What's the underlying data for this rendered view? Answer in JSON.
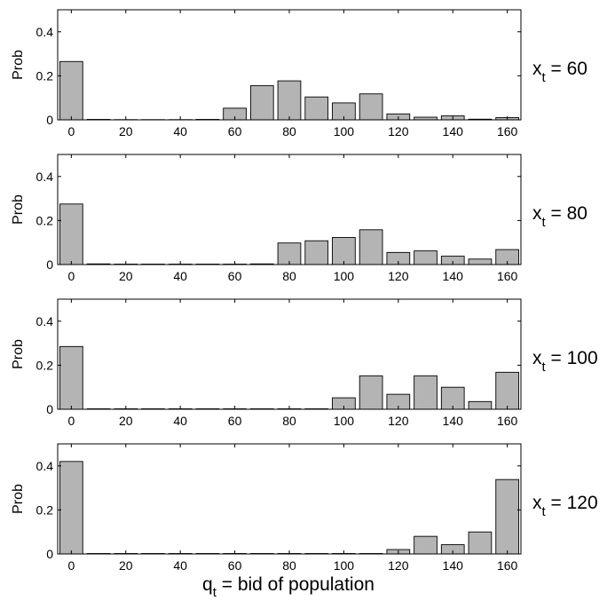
{
  "chart_data": [
    {
      "type": "bar",
      "ylabel": "Prob",
      "side_label": {
        "main": "x",
        "sub": "t",
        "rest": " = 60"
      },
      "categories": [
        0,
        10,
        20,
        30,
        40,
        50,
        60,
        70,
        80,
        90,
        100,
        110,
        120,
        130,
        140,
        150,
        160
      ],
      "values": [
        0.265,
        0.002,
        0.001,
        0.001,
        0.001,
        0.002,
        0.053,
        0.155,
        0.177,
        0.104,
        0.077,
        0.118,
        0.027,
        0.012,
        0.018,
        0.003,
        0.01
      ],
      "xticks": [
        0,
        20,
        40,
        60,
        80,
        100,
        120,
        140,
        160
      ],
      "yticks": [
        0,
        0.2,
        0.4
      ],
      "ytick_labels": [
        "0",
        "0.2",
        "0.4"
      ],
      "xlim": [
        -5,
        165
      ],
      "ylim": [
        0,
        0.5
      ]
    },
    {
      "type": "bar",
      "ylabel": "Prob",
      "side_label": {
        "main": "x",
        "sub": "t",
        "rest": " = 80"
      },
      "categories": [
        0,
        10,
        20,
        30,
        40,
        50,
        60,
        70,
        80,
        90,
        100,
        110,
        120,
        130,
        140,
        150,
        160
      ],
      "values": [
        0.275,
        0.003,
        0.002,
        0.002,
        0.002,
        0.002,
        0.002,
        0.003,
        0.098,
        0.108,
        0.123,
        0.158,
        0.055,
        0.062,
        0.038,
        0.025,
        0.068
      ],
      "xticks": [
        0,
        20,
        40,
        60,
        80,
        100,
        120,
        140,
        160
      ],
      "yticks": [
        0,
        0.2,
        0.4
      ],
      "ytick_labels": [
        "0",
        "0.2",
        "0.4"
      ],
      "xlim": [
        -5,
        165
      ],
      "ylim": [
        0,
        0.5
      ]
    },
    {
      "type": "bar",
      "ylabel": "Prob",
      "side_label": {
        "main": "x",
        "sub": "t",
        "rest": " = 100"
      },
      "categories": [
        0,
        10,
        20,
        30,
        40,
        50,
        60,
        70,
        80,
        90,
        100,
        110,
        120,
        130,
        140,
        150,
        160
      ],
      "values": [
        0.285,
        0.002,
        0.002,
        0.002,
        0.002,
        0.002,
        0.002,
        0.002,
        0.002,
        0.002,
        0.052,
        0.152,
        0.068,
        0.152,
        0.1,
        0.035,
        0.168
      ],
      "xticks": [
        0,
        20,
        40,
        60,
        80,
        100,
        120,
        140,
        160
      ],
      "yticks": [
        0,
        0.2,
        0.4
      ],
      "ytick_labels": [
        "0",
        "0.2",
        "0.4"
      ],
      "xlim": [
        -5,
        165
      ],
      "ylim": [
        0,
        0.5
      ]
    },
    {
      "type": "bar",
      "ylabel": "Prob",
      "side_label": {
        "main": "x",
        "sub": "t",
        "rest": " = 120"
      },
      "categories": [
        0,
        10,
        20,
        30,
        40,
        50,
        60,
        70,
        80,
        90,
        100,
        110,
        120,
        130,
        140,
        150,
        160
      ],
      "values": [
        0.42,
        0.002,
        0.002,
        0.002,
        0.002,
        0.002,
        0.002,
        0.002,
        0.002,
        0.002,
        0.002,
        0.002,
        0.02,
        0.08,
        0.042,
        0.1,
        0.338
      ],
      "xticks": [
        0,
        20,
        40,
        60,
        80,
        100,
        120,
        140,
        160
      ],
      "yticks": [
        0,
        0.2,
        0.4
      ],
      "ytick_labels": [
        "0",
        "0.2",
        "0.4"
      ],
      "xlim": [
        -5,
        165
      ],
      "ylim": [
        0,
        0.5
      ]
    }
  ],
  "xlabel": {
    "main": "q",
    "sub": "t",
    "rest": " = bid of population"
  },
  "colors": {
    "bar_fill": "#b4b4b4",
    "bar_stroke": "#000000",
    "axis": "#000000",
    "background": "#ffffff"
  }
}
